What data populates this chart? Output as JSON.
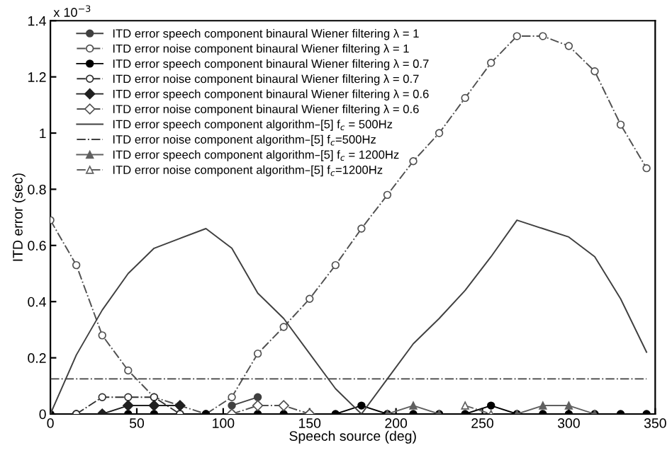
{
  "chart_data": {
    "type": "line",
    "xlabel": "Speech source (deg)",
    "ylabel": "ITD error (sec)",
    "annotations": [
      "x 10$^{−3}$"
    ],
    "x": [
      0,
      15,
      30,
      45,
      60,
      75,
      90,
      105,
      120,
      135,
      150,
      165,
      180,
      195,
      210,
      225,
      240,
      255,
      270,
      285,
      300,
      315,
      330,
      345
    ],
    "xlim": [
      0,
      350
    ],
    "xticks": [
      0,
      50,
      100,
      150,
      200,
      250,
      300,
      350
    ],
    "ylim": [
      0,
      1.4
    ],
    "yticks": [
      0,
      0.2,
      0.4,
      0.6,
      0.8,
      1,
      1.2,
      1.4
    ],
    "legend": "top left",
    "grid": false,
    "series": [
      {
        "name": "ITD error speech component binaural Wiener filtering λ = 1",
        "color": "#404040",
        "marker": "circle",
        "line_style": "solid",
        "values": [
          null,
          null,
          null,
          null,
          null,
          null,
          null,
          0.03,
          0.06,
          null,
          null,
          null,
          null,
          null,
          null,
          null,
          null,
          null,
          null,
          null,
          null,
          null,
          null,
          null
        ]
      },
      {
        "name": "ITD error noise component binaural Wiener filtering λ = 1",
        "color": "#505050",
        "marker": "circle",
        "line_style": "dashed",
        "values": [
          0.69,
          0.53,
          0.28,
          0.155,
          0.06,
          0.03,
          0,
          0.06,
          0.215,
          0.31,
          0.41,
          0.53,
          0.66,
          0.78,
          0.9,
          1.0,
          1.125,
          1.25,
          1.345,
          1.345,
          1.31,
          1.22,
          1.03,
          0.875
        ]
      },
      {
        "name": "ITD error speech component binaural Wiener filtering λ = 0.7",
        "color": "#000000",
        "marker": "circle",
        "line_style": "solid",
        "values": [
          0,
          0,
          0,
          0,
          0,
          0,
          0,
          0,
          0,
          0,
          0,
          0,
          0.03,
          0,
          0,
          0,
          0,
          0.03,
          0,
          0,
          0,
          0,
          0,
          0
        ]
      },
      {
        "name": "ITD error noise component binaural Wiener filtering λ = 0.7",
        "color": "#303030",
        "marker": "circle",
        "line_style": "dashed",
        "values": [
          null,
          0,
          0.06,
          0.06,
          0.06,
          0,
          null,
          null,
          null,
          null,
          null,
          null,
          null,
          null,
          null,
          null,
          null,
          null,
          null,
          null,
          null,
          null,
          null,
          null
        ]
      },
      {
        "name": "ITD error speech component binaural Wiener filtering λ = 0.6",
        "color": "#202020",
        "marker": "diamond",
        "line_style": "solid",
        "values": [
          null,
          null,
          0,
          0.03,
          0.03,
          0.03,
          null,
          null,
          null,
          null,
          null,
          null,
          null,
          null,
          null,
          null,
          null,
          null,
          null,
          null,
          null,
          null,
          null,
          null
        ]
      },
      {
        "name": "ITD error noise component binaural Wiener filtering λ = 0.6",
        "color": "#505050",
        "marker": "diamond",
        "line_style": "dashed",
        "values": [
          null,
          null,
          null,
          null,
          null,
          null,
          null,
          0,
          0.03,
          0.03,
          0,
          null,
          null,
          null,
          null,
          null,
          null,
          null,
          null,
          null,
          null,
          null,
          null,
          null
        ]
      },
      {
        "name": "ITD error speech component algorithm–[5] f$_{c}$ = 500Hz",
        "color": "#404040",
        "marker": "none",
        "line_style": "solid",
        "values": [
          0,
          0.21,
          0.37,
          0.5,
          0.59,
          0.625,
          0.66,
          0.59,
          0.43,
          0.34,
          0.215,
          0.09,
          0,
          0.125,
          0.25,
          0.34,
          0.44,
          0.56,
          0.69,
          0.66,
          0.63,
          0.56,
          0.41,
          0.22
        ]
      },
      {
        "name": "ITD error noise component algorithm–[5] f$_{c}$=500Hz",
        "color": "#404040",
        "marker": "none",
        "line_style": "dashed",
        "values": [
          0.125,
          0.125,
          0.125,
          0.125,
          0.125,
          0.125,
          0.125,
          0.125,
          0.125,
          0.125,
          0.125,
          0.125,
          0.125,
          0.125,
          0.125,
          0.125,
          0.125,
          0.125,
          0.125,
          0.125,
          0.125,
          0.125,
          0.125,
          0.125
        ]
      },
      {
        "name": "ITD error speech component algorithm–[5] f$_{c}$ = 1200Hz",
        "color": "#606060",
        "marker": "triangle",
        "line_style": "solid",
        "values": [
          null,
          null,
          null,
          null,
          null,
          null,
          null,
          null,
          null,
          null,
          null,
          null,
          null,
          0,
          0.03,
          0,
          null,
          null,
          0,
          0.03,
          0.03,
          0,
          null,
          null
        ]
      },
      {
        "name": "ITD error noise component algorithm–[5] f$_{c}$=1200Hz",
        "color": "#606060",
        "marker": "triangle",
        "line_style": "dashed",
        "values": [
          null,
          null,
          null,
          null,
          null,
          null,
          null,
          null,
          null,
          null,
          null,
          null,
          null,
          null,
          null,
          null,
          0.03,
          0,
          null,
          null,
          null,
          null,
          null,
          null
        ]
      }
    ]
  }
}
